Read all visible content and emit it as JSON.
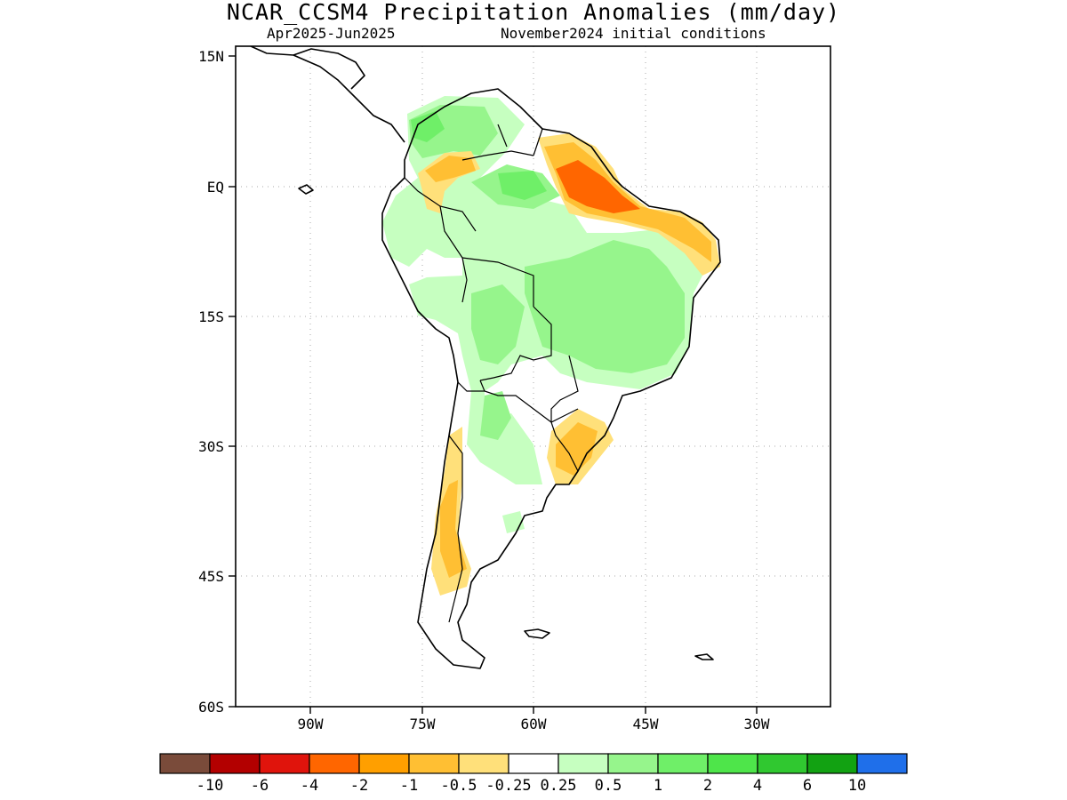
{
  "header": {
    "title": "NCAR_CCSM4 Precipitation Anomalies (mm/day)",
    "period": "Apr2025-Jun2025",
    "initial_conditions": "November2024 initial conditions"
  },
  "map": {
    "region": "South America",
    "lat_ticks": [
      "15N",
      "EQ",
      "15S",
      "30S",
      "45S",
      "60S"
    ],
    "lon_ticks": [
      "90W",
      "75W",
      "60W",
      "45W",
      "30W"
    ],
    "gridlines": "dotted"
  },
  "colorbar": {
    "colors": [
      "#7a4b3a",
      "#b30000",
      "#e0140c",
      "#ff6600",
      "#ff9f00",
      "#ffbf33",
      "#ffe07a",
      "#ffffff",
      "#c6ffc0",
      "#96f58c",
      "#6fef68",
      "#4ee54a",
      "#30c830",
      "#12a212",
      "#1f6fea"
    ],
    "labels": [
      "-10",
      "-6",
      "-4",
      "-2",
      "-1",
      "-0.5",
      "-0.25",
      "0.25",
      "0.5",
      "1",
      "2",
      "4",
      "6",
      "10"
    ]
  }
}
